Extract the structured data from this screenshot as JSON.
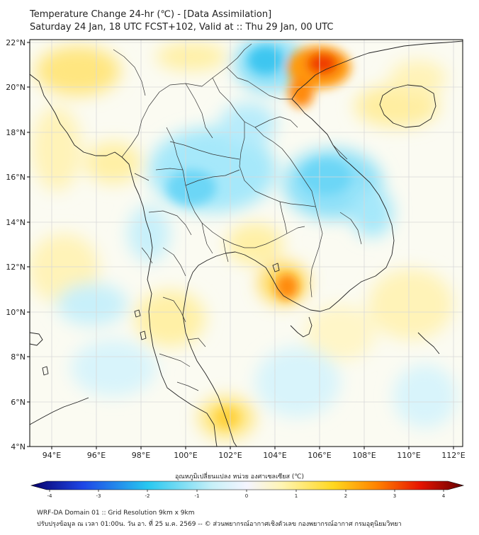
{
  "title": {
    "line1": "Temperature Change 24-hr (℃) - [Data Assimilation]",
    "line2": "Saturday 24 Jan, 18 UTC FCST+102, Valid at :: Thu 29 Jan, 00 UTC"
  },
  "axes": {
    "lon_labels": [
      "94°E",
      "96°E",
      "98°E",
      "100°E",
      "102°E",
      "104°E",
      "106°E",
      "108°E",
      "110°E",
      "112°E"
    ],
    "lat_labels": [
      "22°N",
      "20°N",
      "18°N",
      "16°N",
      "14°N",
      "12°N",
      "10°N",
      "8°N",
      "6°N",
      "4°N"
    ],
    "lon_range": [
      93,
      112.5
    ],
    "lat_range": [
      4,
      22.2
    ]
  },
  "colorbar": {
    "title": "อุณหภูมิเปลี่ยนแปลง หน่วย องศาเซลเซียส (℃)",
    "ticks": [
      "-4",
      "-3",
      "-2",
      "-1",
      "0",
      "1",
      "2",
      "3",
      "4"
    ],
    "range": [
      -4,
      4
    ],
    "colors": {
      "min": "#08006a",
      "blue": "#1e46e6",
      "cyan": "#28c8f0",
      "pale_cyan": "#c8f0f8",
      "neutral": "#f5f5ff",
      "pale_yellow": "#fff5b4",
      "yellow": "#ffd71e",
      "orange": "#ff8200",
      "red": "#e61400",
      "max": "#640000"
    }
  },
  "colors": {
    "coastline": "#222222",
    "border": "#333333",
    "grid": "#d9d9d9",
    "background_field": "#fbfbf2"
  },
  "footer": {
    "line1": "WRF-DA Domain 01 :: Grid Resolution 9km x 9km",
    "line2": "ปรับปรุงข้อมูล ณ เวลา 01:00น. วัน อา. ที่ 25 ม.ค. 2569 -- © ส่วนพยากรณ์อากาศเชิงตัวเลข กองพยากรณ์อากาศ กรมอุตุนิยมวิทยา"
  }
}
